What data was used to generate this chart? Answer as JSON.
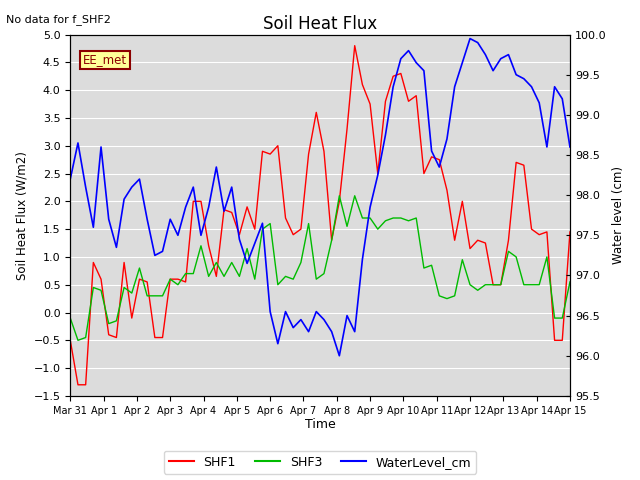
{
  "title": "Soil Heat Flux",
  "note": "No data for f_SHF2",
  "xlabel": "Time",
  "ylabel_left": "Soil Heat Flux (W/m2)",
  "ylabel_right": "Water level (cm)",
  "ylim_left": [
    -1.5,
    5.0
  ],
  "ylim_right": [
    95.5,
    100.0
  ],
  "background_color": "#ffffff",
  "plot_bg_color": "#dcdcdc",
  "grid_color": "#ffffff",
  "legend_items": [
    "SHF1",
    "SHF3",
    "WaterLevel_cm"
  ],
  "legend_colors": [
    "#ff0000",
    "#00bb00",
    "#0000ff"
  ],
  "ee_met_box_color": "#ffff99",
  "ee_met_border_color": "#8b0000",
  "tick_labels": [
    "Mar 31",
    "Apr 1",
    "Apr 2",
    "Apr 3",
    "Apr 4",
    "Apr 5",
    "Apr 6",
    "Apr 7",
    "Apr 8",
    "Apr 9",
    "Apr 10",
    "Apr 11",
    "Apr 12",
    "Apr 13",
    "Apr 14",
    "Apr 15"
  ],
  "yticks_left": [
    -1.5,
    -1.0,
    -0.5,
    0.0,
    0.5,
    1.0,
    1.5,
    2.0,
    2.5,
    3.0,
    3.5,
    4.0,
    4.5,
    5.0
  ],
  "yticks_right": [
    95.5,
    96.0,
    96.5,
    97.0,
    97.5,
    98.0,
    98.5,
    99.0,
    99.5,
    100.0
  ],
  "shf1": [
    -0.5,
    -1.3,
    -1.3,
    0.9,
    0.6,
    -0.4,
    -0.45,
    0.9,
    -0.1,
    0.6,
    0.55,
    -0.45,
    -0.45,
    0.6,
    0.6,
    0.55,
    2.0,
    2.0,
    1.2,
    0.65,
    1.85,
    1.8,
    1.4,
    1.9,
    1.5,
    2.9,
    2.85,
    3.0,
    1.7,
    1.4,
    1.5,
    2.85,
    3.6,
    2.9,
    1.3,
    2.0,
    3.3,
    4.8,
    4.1,
    3.75,
    2.5,
    3.8,
    4.25,
    4.3,
    3.8,
    3.9,
    2.5,
    2.8,
    2.75,
    2.2,
    1.3,
    2.0,
    1.15,
    1.3,
    1.25,
    0.5,
    0.5,
    1.3,
    2.7,
    2.65,
    1.5,
    1.4,
    1.45,
    -0.5,
    -0.5,
    1.45
  ],
  "shf3": [
    -0.1,
    -0.5,
    -0.45,
    0.45,
    0.4,
    -0.2,
    -0.15,
    0.45,
    0.35,
    0.8,
    0.3,
    0.3,
    0.3,
    0.6,
    0.5,
    0.7,
    0.7,
    1.2,
    0.65,
    0.9,
    0.65,
    0.9,
    0.65,
    1.15,
    0.6,
    1.5,
    1.6,
    0.5,
    0.65,
    0.6,
    0.9,
    1.6,
    0.6,
    0.7,
    1.3,
    2.1,
    1.55,
    2.1,
    1.7,
    1.7,
    1.5,
    1.65,
    1.7,
    1.7,
    1.65,
    1.7,
    0.8,
    0.85,
    0.3,
    0.25,
    0.3,
    0.95,
    0.5,
    0.4,
    0.5,
    0.5,
    0.5,
    1.1,
    1.0,
    0.5,
    0.5,
    0.5,
    1.0,
    -0.1,
    -0.1,
    0.55
  ],
  "wl": [
    98.2,
    98.65,
    98.1,
    97.6,
    98.6,
    97.7,
    97.35,
    97.95,
    98.1,
    98.2,
    97.7,
    97.25,
    97.3,
    97.7,
    97.5,
    97.85,
    98.1,
    97.5,
    97.85,
    98.35,
    97.8,
    98.1,
    97.45,
    97.15,
    97.4,
    97.65,
    96.55,
    96.15,
    96.55,
    96.35,
    96.45,
    96.3,
    96.55,
    96.45,
    96.3,
    96.0,
    96.5,
    96.3,
    97.2,
    97.85,
    98.25,
    98.75,
    99.35,
    99.7,
    99.8,
    99.65,
    99.55,
    98.55,
    98.35,
    98.7,
    99.35,
    99.65,
    99.95,
    99.9,
    99.75,
    99.55,
    99.7,
    99.75,
    99.5,
    99.45,
    99.35,
    99.15,
    98.6,
    99.35,
    99.2,
    98.6
  ]
}
